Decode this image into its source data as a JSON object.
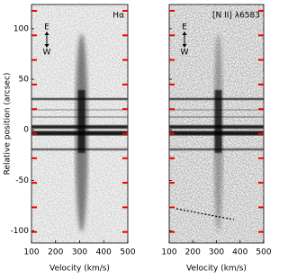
{
  "chart_data": [
    {
      "type": "image",
      "title": "Hα",
      "annotations": [
        "E",
        "W"
      ],
      "xlabel": "Velocity (km/s)",
      "ylabel": "Relative position (arcsec)",
      "xlim": [
        100,
        500
      ],
      "xticks": [
        100,
        200,
        300,
        400,
        500
      ],
      "ylim": [
        -112,
        124
      ],
      "yticks": [
        -100,
        -50,
        0,
        50,
        100
      ]
    },
    {
      "type": "image",
      "title": "[N II] λ6583",
      "annotations": [
        "E",
        "W"
      ],
      "xlabel": "Velocity (km/s)",
      "xlim": [
        100,
        500
      ],
      "xticks": [
        100,
        200,
        300,
        400,
        500
      ],
      "ylim": [
        -112,
        124
      ],
      "yticks": [
        -100,
        -50,
        0,
        50,
        100
      ]
    }
  ]
}
